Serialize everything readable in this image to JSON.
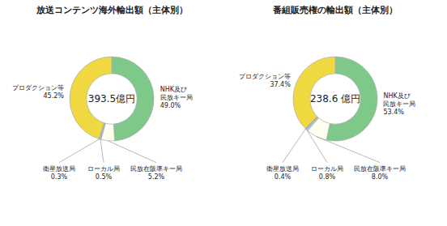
{
  "chart_data": [
    {
      "type": "donut",
      "title": "放送コンテンツ海外輸出額（主体別）",
      "annotations": [
        "393.5億円"
      ],
      "categories": [
        "NHK及び\n民放キー局",
        "民放在阪準キー局",
        "ローカル局",
        "衛星放送局",
        "プロダクション等"
      ],
      "values": [
        49.0,
        5.2,
        0.5,
        0.3,
        45.2
      ],
      "value_labels": [
        "49.0%",
        "5.2%",
        "0.5%",
        "0.3%",
        "45.2%"
      ],
      "colors": [
        "#7ec88a",
        "#fffff0",
        "#b0c8e8",
        "#9090d0",
        "#f0d840"
      ]
    },
    {
      "type": "donut",
      "title": "番組販売権の輸出額（主体別）",
      "annotations": [
        "238.6 億円"
      ],
      "categories": [
        "NHK及び\n民放キー局",
        "民放在阪準キー局",
        "ローカル局",
        "衛星放送局",
        "プロダクション等"
      ],
      "values": [
        53.4,
        8.0,
        0.8,
        0.4,
        37.4
      ],
      "value_labels": [
        "53.4%",
        "8.0%",
        "0.8%",
        "0.4%",
        "37.4%"
      ],
      "colors": [
        "#7ec88a",
        "#fffff0",
        "#b0c8e8",
        "#9090d0",
        "#f0d840"
      ]
    }
  ]
}
